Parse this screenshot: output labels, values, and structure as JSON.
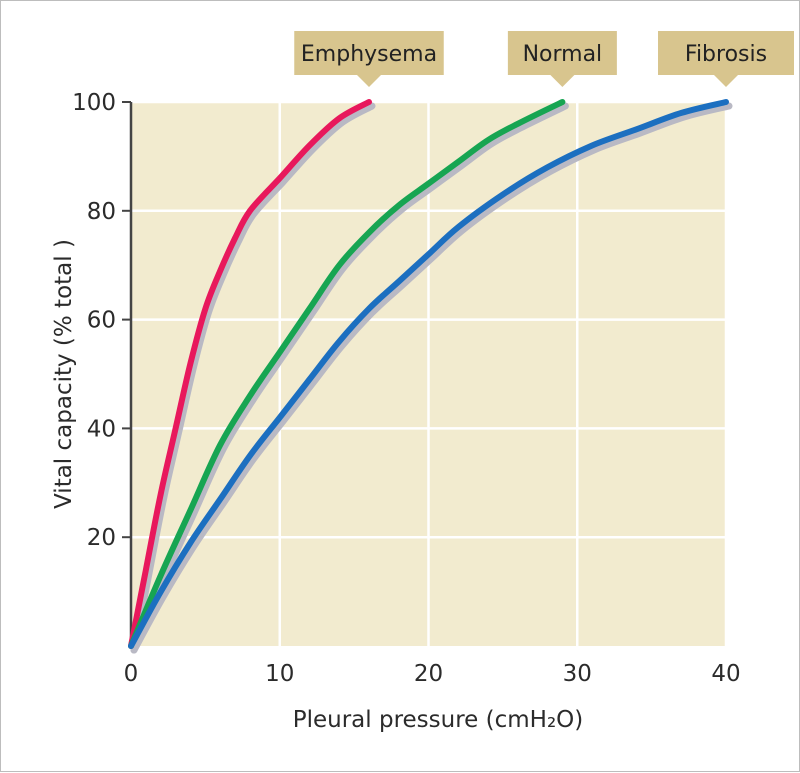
{
  "chart_data": {
    "type": "line",
    "xlabel": "Pleural pressure (cmH₂O)",
    "ylabel": "Vital capacity (% total )",
    "xlim": [
      0,
      40
    ],
    "ylim": [
      0,
      100
    ],
    "x_ticks": [
      "0",
      "10",
      "20",
      "30",
      "40"
    ],
    "y_ticks": [
      "20",
      "40",
      "60",
      "80",
      "100"
    ],
    "grid": true,
    "series": [
      {
        "name": "Emphysema",
        "color": "#e8185c",
        "points": [
          [
            0,
            0
          ],
          [
            1,
            14
          ],
          [
            2,
            28
          ],
          [
            3,
            40
          ],
          [
            4,
            52
          ],
          [
            5,
            62
          ],
          [
            6,
            69
          ],
          [
            7,
            75
          ],
          [
            8,
            80
          ],
          [
            10,
            86
          ],
          [
            12,
            92
          ],
          [
            14,
            97
          ],
          [
            16,
            100
          ]
        ]
      },
      {
        "name": "Normal",
        "color": "#17a552",
        "points": [
          [
            0,
            0
          ],
          [
            2,
            13
          ],
          [
            4,
            25
          ],
          [
            6,
            37
          ],
          [
            8,
            46
          ],
          [
            10,
            54
          ],
          [
            12,
            62
          ],
          [
            14,
            70
          ],
          [
            16,
            76
          ],
          [
            18,
            81
          ],
          [
            20,
            85
          ],
          [
            22,
            89
          ],
          [
            24,
            93
          ],
          [
            26,
            96
          ],
          [
            29,
            100
          ]
        ]
      },
      {
        "name": "Fibrosis",
        "color": "#1c6fc0",
        "points": [
          [
            0,
            0
          ],
          [
            2,
            10
          ],
          [
            4,
            19
          ],
          [
            6,
            27
          ],
          [
            8,
            35
          ],
          [
            10,
            42
          ],
          [
            12,
            49
          ],
          [
            14,
            56
          ],
          [
            16,
            62
          ],
          [
            18,
            67
          ],
          [
            20,
            72
          ],
          [
            22,
            77
          ],
          [
            25,
            83
          ],
          [
            28,
            88
          ],
          [
            31,
            92
          ],
          [
            34,
            95
          ],
          [
            37,
            98
          ],
          [
            40,
            100
          ]
        ]
      }
    ]
  }
}
